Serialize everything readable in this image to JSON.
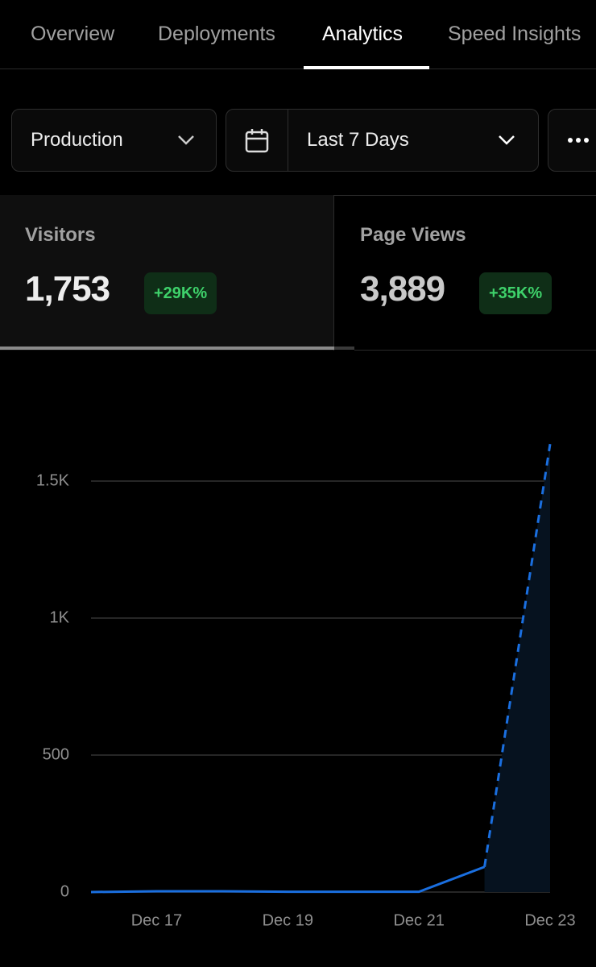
{
  "tabs": [
    "Overview",
    "Deployments",
    "Analytics",
    "Speed Insights"
  ],
  "active_tab": 2,
  "filters": {
    "environment": "Production",
    "range": "Last 7 Days"
  },
  "stats": [
    {
      "label": "Visitors",
      "value": "1,753",
      "change": "+29K%"
    },
    {
      "label": "Page Views",
      "value": "3,889",
      "change": "+35K%"
    }
  ],
  "chart_data": {
    "type": "line",
    "categories": [
      null,
      "Dec 17",
      null,
      "Dec 19",
      null,
      "Dec 21",
      null,
      "Dec 23"
    ],
    "series": [
      {
        "name": "Visitors",
        "color": "#1a6fe0",
        "values": [
          0,
          3,
          3,
          1,
          1,
          1,
          92,
          1635
        ]
      }
    ],
    "ylim": [
      0,
      1700
    ],
    "yticks": [
      0,
      500,
      {
        "value": 1000,
        "label": "1K"
      },
      {
        "value": 1500,
        "label": "1.5K"
      }
    ],
    "grid": true
  }
}
